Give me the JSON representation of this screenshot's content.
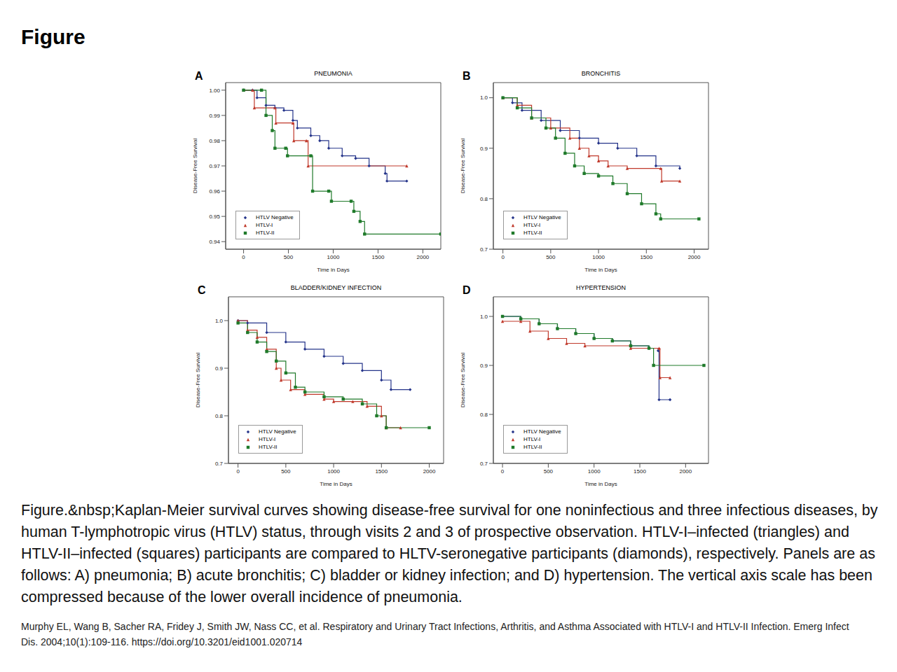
{
  "title": "Figure",
  "chart_data": [
    {
      "type": "line",
      "panel": "A",
      "title": "PNEUMONIA",
      "x_label": "Time in Days",
      "y_label": "Disease-Free Survival",
      "line_style": "step",
      "legend": "lower left",
      "xlim": [
        -200,
        2200
      ],
      "xticks": [
        0,
        500,
        1000,
        1500,
        2000
      ],
      "ylim": [
        0.937,
        1.003
      ],
      "yticks": [
        0.94,
        0.95,
        0.96,
        0.97,
        0.98,
        0.99,
        {
          "value": 1,
          "label": "1.00"
        }
      ],
      "series": [
        {
          "name": "HTLV Negative",
          "color": "#25348a",
          "marker": "diamond",
          "x": [
            0,
            100,
            150,
            250,
            350,
            450,
            550,
            600,
            750,
            850,
            950,
            1100,
            1250,
            1400,
            1580,
            1600,
            1820
          ],
          "values": [
            1.0,
            1.0,
            0.997,
            0.994,
            0.993,
            0.992,
            0.988,
            0.985,
            0.982,
            0.98,
            0.977,
            0.974,
            0.973,
            0.97,
            0.967,
            0.964,
            0.964
          ]
        },
        {
          "name": "HTLV-I",
          "color": "#c0392b",
          "marker": "triangle",
          "x": [
            0,
            100,
            120,
            350,
            360,
            550,
            560,
            700,
            720,
            1820
          ],
          "values": [
            1.0,
            1.0,
            0.993,
            0.993,
            0.987,
            0.987,
            0.98,
            0.98,
            0.97,
            0.97
          ]
        },
        {
          "name": "HTLV-II",
          "color": "#1f7a2a",
          "marker": "square",
          "x": [
            0,
            200,
            250,
            320,
            350,
            470,
            490,
            750,
            770,
            950,
            980,
            1200,
            1230,
            1300,
            1350,
            2200
          ],
          "values": [
            1.0,
            1.0,
            0.99,
            0.984,
            0.977,
            0.977,
            0.974,
            0.974,
            0.96,
            0.96,
            0.956,
            0.956,
            0.952,
            0.948,
            0.943,
            0.943
          ]
        }
      ]
    },
    {
      "type": "line",
      "panel": "B",
      "title": "BRONCHITIS",
      "x_label": "Time in Days",
      "y_label": "Disease-Free Survival",
      "line_style": "step",
      "legend": "lower left",
      "xlim": [
        -100,
        2150
      ],
      "xticks": [
        0,
        500,
        1000,
        1500,
        2000
      ],
      "ylim": [
        0.7,
        1.03
      ],
      "yticks": [
        0.7,
        0.8,
        0.9,
        {
          "value": 1,
          "label": "1.0"
        }
      ],
      "series": [
        {
          "name": "HTLV Negative",
          "color": "#25348a",
          "marker": "diamond",
          "x": [
            0,
            100,
            200,
            400,
            600,
            800,
            1000,
            1200,
            1400,
            1600,
            1850
          ],
          "values": [
            1.0,
            0.99,
            0.975,
            0.955,
            0.935,
            0.92,
            0.91,
            0.9,
            0.885,
            0.865,
            0.86
          ]
        },
        {
          "name": "HTLV-I",
          "color": "#c0392b",
          "marker": "triangle",
          "x": [
            0,
            150,
            300,
            500,
            700,
            800,
            900,
            1000,
            1100,
            1300,
            1650,
            1660,
            1850
          ],
          "values": [
            1.0,
            0.985,
            0.96,
            0.94,
            0.92,
            0.9,
            0.885,
            0.875,
            0.865,
            0.86,
            0.86,
            0.835,
            0.835
          ]
        },
        {
          "name": "HTLV-II",
          "color": "#1f7a2a",
          "marker": "square",
          "x": [
            0,
            150,
            300,
            450,
            550,
            650,
            750,
            850,
            1000,
            1150,
            1300,
            1450,
            1600,
            1650,
            2050
          ],
          "values": [
            1.0,
            0.98,
            0.96,
            0.94,
            0.92,
            0.89,
            0.865,
            0.85,
            0.845,
            0.83,
            0.81,
            0.79,
            0.77,
            0.76,
            0.76
          ]
        }
      ]
    },
    {
      "type": "line",
      "panel": "C",
      "title": "BLADDER/KIDNEY INFECTION",
      "x_label": "Time in Days",
      "y_label": "Disease-Free Survival",
      "line_style": "step",
      "legend": "lower left",
      "xlim": [
        -100,
        2150
      ],
      "xticks": [
        0,
        500,
        1000,
        1500,
        2000
      ],
      "ylim": [
        0.7,
        1.05
      ],
      "yticks": [
        0.7,
        0.8,
        0.9,
        {
          "value": 1,
          "label": "1.0"
        }
      ],
      "series": [
        {
          "name": "HTLV Negative",
          "color": "#25348a",
          "marker": "diamond",
          "x": [
            0,
            100,
            300,
            500,
            700,
            900,
            1100,
            1300,
            1500,
            1600,
            1800
          ],
          "values": [
            1.0,
            0.995,
            0.975,
            0.955,
            0.94,
            0.925,
            0.91,
            0.895,
            0.875,
            0.855,
            0.855
          ]
        },
        {
          "name": "HTLV-I",
          "color": "#c0392b",
          "marker": "triangle",
          "x": [
            0,
            100,
            200,
            300,
            400,
            450,
            550,
            700,
            900,
            1000,
            1200,
            1350,
            1500,
            1550,
            1700
          ],
          "values": [
            1.0,
            0.98,
            0.965,
            0.94,
            0.9,
            0.875,
            0.855,
            0.845,
            0.835,
            0.83,
            0.83,
            0.82,
            0.8,
            0.775,
            0.775
          ]
        },
        {
          "name": "HTLV-II",
          "color": "#1f7a2a",
          "marker": "square",
          "x": [
            0,
            100,
            200,
            300,
            400,
            500,
            600,
            700,
            900,
            1100,
            1300,
            1450,
            1550,
            2000
          ],
          "values": [
            0.995,
            0.975,
            0.955,
            0.935,
            0.915,
            0.89,
            0.86,
            0.85,
            0.84,
            0.835,
            0.825,
            0.8,
            0.775,
            0.775
          ]
        }
      ]
    },
    {
      "type": "line",
      "panel": "D",
      "title": "HYPERTENSION",
      "x_label": "Time in Days",
      "y_label": "Disease-Free Survival",
      "line_style": "step",
      "legend": "lower left",
      "xlim": [
        -100,
        2250
      ],
      "xticks": [
        0,
        500,
        1000,
        1500,
        2000
      ],
      "ylim": [
        0.7,
        1.04
      ],
      "yticks": [
        0.7,
        0.8,
        0.9,
        {
          "value": 1,
          "label": "1.0"
        }
      ],
      "series": [
        {
          "name": "HTLV Negative",
          "color": "#25348a",
          "marker": "diamond",
          "x": [
            0,
            200,
            400,
            600,
            800,
            1000,
            1200,
            1400,
            1600,
            1700,
            1710,
            1830
          ],
          "values": [
            1.0,
            0.995,
            0.985,
            0.975,
            0.965,
            0.955,
            0.95,
            0.94,
            0.935,
            0.93,
            0.83,
            0.83
          ]
        },
        {
          "name": "HTLV-I",
          "color": "#c0392b",
          "marker": "triangle",
          "x": [
            0,
            200,
            300,
            500,
            700,
            900,
            1400,
            1710,
            1720,
            1830
          ],
          "values": [
            0.99,
            0.99,
            0.97,
            0.955,
            0.945,
            0.94,
            0.935,
            0.935,
            0.875,
            0.875
          ]
        },
        {
          "name": "HTLV-II",
          "color": "#1f7a2a",
          "marker": "square",
          "x": [
            0,
            200,
            400,
            600,
            800,
            1000,
            1200,
            1400,
            1600,
            1650,
            2200
          ],
          "values": [
            1.0,
            0.995,
            0.985,
            0.975,
            0.965,
            0.955,
            0.95,
            0.94,
            0.935,
            0.9,
            0.9
          ]
        }
      ]
    }
  ],
  "caption": "Figure.&nbsp;Kaplan-Meier survival curves showing disease-free survival for one noninfectious and three infectious diseases, by human T-lymphotropic virus (HTLV) status, through visits 2 and 3 of prospective observation. HTLV-I–infected (triangles) and HTLV-II–infected (squares) participants are compared to HLTV-seronegative participants (diamonds), respectively. Panels are as follows: A) pneumonia; B) acute bronchitis; C) bladder or kidney infection; and D) hypertension. The vertical axis scale has been compressed because of the lower overall incidence of pneumonia.",
  "citation": "Murphy EL, Wang B, Sacher RA, Fridey J, Smith JW, Nass CC, et al. Respiratory and Urinary Tract Infections, Arthritis, and Asthma Associated with HTLV-I and HTLV-II Infection. Emerg Infect Dis. 2004;10(1):109-116. https://doi.org/10.3201/eid1001.020714"
}
